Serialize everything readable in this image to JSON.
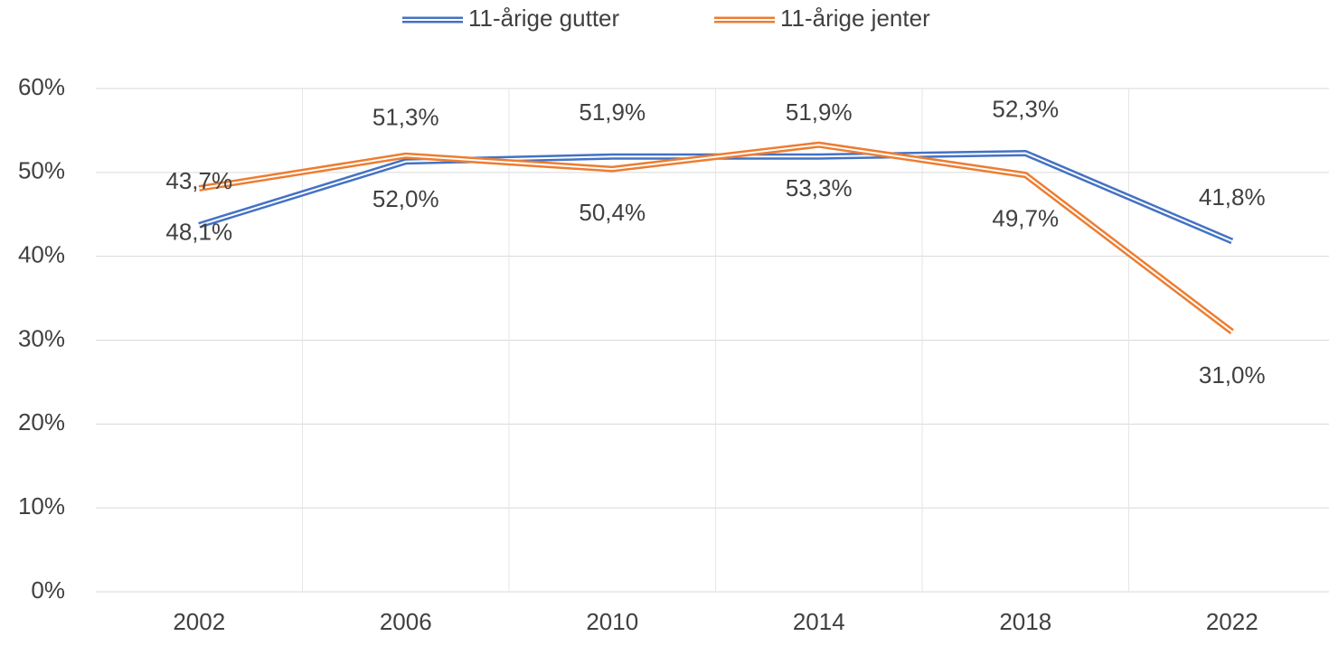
{
  "chart_data": {
    "type": "line",
    "categories": [
      "2002",
      "2006",
      "2010",
      "2014",
      "2018",
      "2022"
    ],
    "series": [
      {
        "name": "11-årige gutter",
        "color": "#4472c4",
        "values": [
          43.7,
          51.3,
          51.9,
          51.9,
          52.3,
          41.8
        ],
        "value_labels": [
          "43,7%",
          "51,3%",
          "51,9%",
          "51,9%",
          "52,3%",
          "41,8%"
        ]
      },
      {
        "name": "11-årige jenter",
        "color": "#ed7d31",
        "values": [
          48.1,
          52.0,
          50.4,
          53.3,
          49.7,
          31.0
        ],
        "value_labels": [
          "48,1%",
          "52,0%",
          "50,4%",
          "53,3%",
          "49,7%",
          "31,0%"
        ]
      }
    ],
    "ylim": [
      0,
      60
    ],
    "yticks": [
      {
        "value": 0,
        "label": "0%"
      },
      {
        "value": 10,
        "label": "10%"
      },
      {
        "value": 20,
        "label": "20%"
      },
      {
        "value": 30,
        "label": "30%"
      },
      {
        "value": 40,
        "label": "40%"
      },
      {
        "value": 50,
        "label": "50%"
      },
      {
        "value": 60,
        "label": "60%"
      }
    ],
    "grid": true,
    "legend": "top"
  }
}
